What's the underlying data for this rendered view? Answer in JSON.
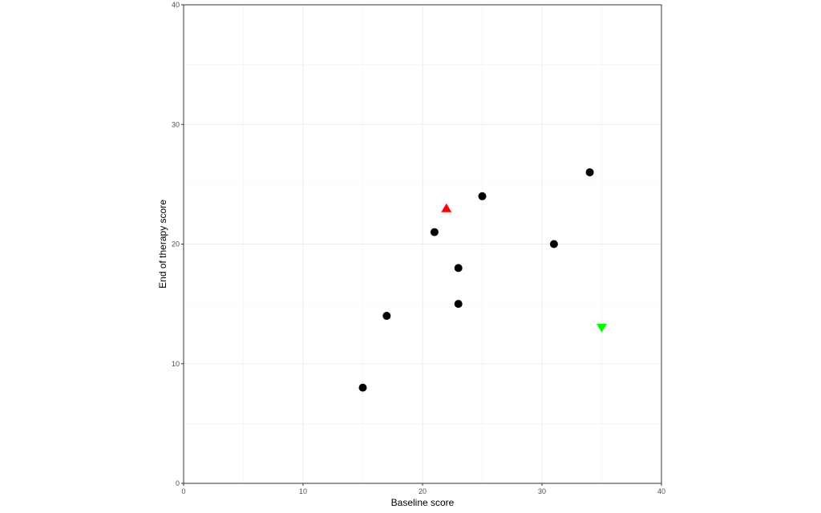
{
  "chart_data": {
    "type": "scatter",
    "title": "",
    "xlabel": "Baseline score",
    "ylabel": "End of therapy score",
    "xlim": [
      0,
      40
    ],
    "ylim": [
      0,
      40
    ],
    "xticks": [
      0,
      10,
      20,
      30,
      40
    ],
    "yticks": [
      0,
      10,
      20,
      30,
      40
    ],
    "grid": true,
    "legend": "none",
    "series": [
      {
        "marker": "circle",
        "color": "#000000",
        "points": [
          [
            15,
            8
          ],
          [
            17,
            14
          ],
          [
            21,
            21
          ],
          [
            23,
            18
          ],
          [
            23,
            15
          ],
          [
            25,
            24
          ],
          [
            31,
            20
          ],
          [
            34,
            26
          ]
        ]
      },
      {
        "marker": "triangle-up",
        "color": "#ff0000",
        "points": [
          [
            22,
            23
          ]
        ]
      },
      {
        "marker": "triangle-down",
        "color": "#00ff00",
        "points": [
          [
            35,
            13
          ]
        ]
      }
    ]
  }
}
